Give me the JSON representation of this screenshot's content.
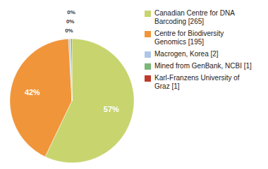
{
  "chart_data": {
    "type": "pie",
    "categories": [
      "Canadian Centre for DNA\nBarcoding [265]",
      "Centre for Biodiversity\nGenomics [195]",
      "Macrogen, Korea [2]",
      "Mined from GenBank, NCBI [1]",
      "Karl-Franzens University of\nGraz [1]"
    ],
    "values": [
      57.11,
      42.03,
      0.43,
      0.22,
      0.22
    ],
    "value_labels": [
      "57%",
      "42%",
      "0%",
      "0%",
      "0%"
    ],
    "colors": [
      "#c8d46e",
      "#f0953a",
      "#aec6e8",
      "#7ab87a",
      "#c0392b"
    ],
    "data_labels": true,
    "legend": "right"
  }
}
